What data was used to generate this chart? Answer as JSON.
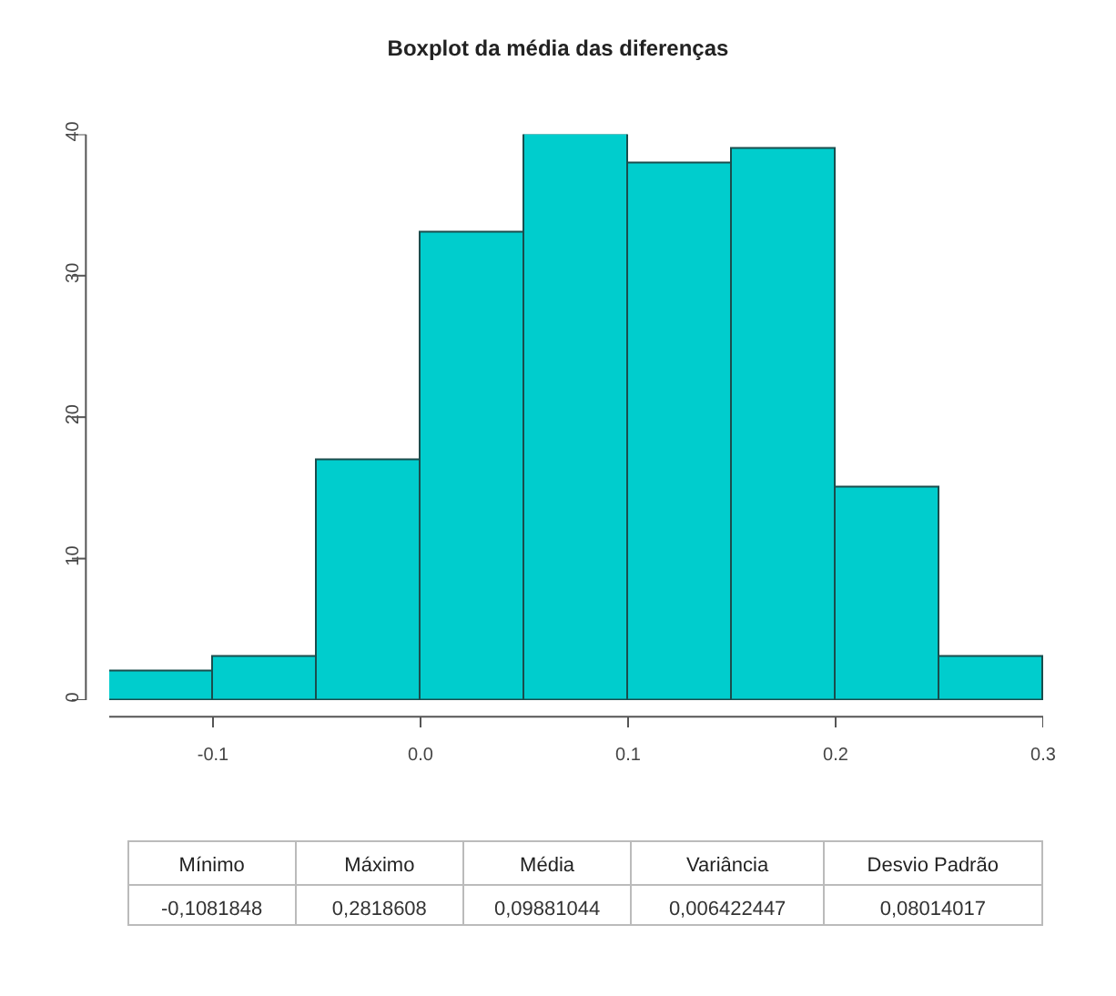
{
  "chart_data": {
    "type": "histogram",
    "title": "Boxplot da média das diferenças",
    "bins": [
      -0.15,
      -0.1,
      -0.05,
      0,
      0.05,
      0.1,
      0.15,
      0.2,
      0.25,
      0.3
    ],
    "values": [
      2,
      3,
      17,
      33,
      40,
      38,
      39,
      15,
      3
    ],
    "color": "#00cdcd",
    "xlim": [
      -0.15,
      0.3
    ],
    "xticks": [
      -0.1,
      {
        "value": 0,
        "label": "0.0"
      },
      0.1,
      0.2,
      0.3
    ],
    "ylim": [
      0,
      40
    ],
    "yticks": [
      0,
      10,
      20,
      30,
      40
    ],
    "grid": false,
    "annotations": [
      "Mínimo",
      "Máximo",
      "Média",
      "Variância",
      "Desvio Padrão",
      "-0,1081848",
      "0,2818608",
      "0,09881044",
      "0,006422447",
      "0,08014017"
    ]
  }
}
